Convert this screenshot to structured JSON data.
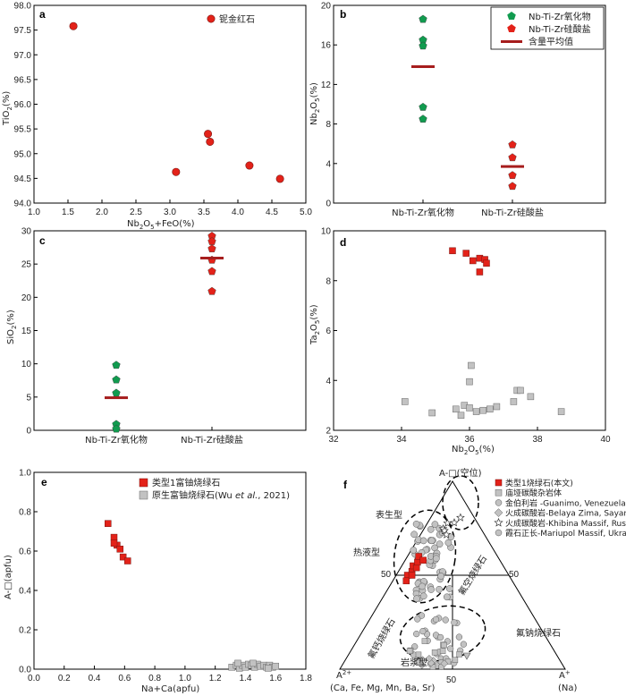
{
  "colors": {
    "red": "#e32219",
    "green": "#119b4f",
    "grey": "#c2c2c2",
    "mean": "#a61d1d"
  },
  "chart_data": [
    {
      "type": "scatter",
      "panel": "a",
      "xlabel": "Nb2O5+FeO(%)",
      "ylabel": "TiO2(%)",
      "xlim": [
        1.0,
        5.0
      ],
      "ylim": [
        94.0,
        98.0
      ],
      "xticks": [
        "1.0",
        "1.5",
        "2.0",
        "2.5",
        "3.0",
        "3.5",
        "4.0",
        "4.5",
        "5.0"
      ],
      "yticks": [
        "94.0",
        "94.5",
        "95.0",
        "95.5",
        "96.0",
        "96.5",
        "97.0",
        "97.5",
        "98.0"
      ],
      "series": [
        {
          "name": "铌金红石",
          "marker": "circle",
          "color": "#e32219",
          "points": [
            [
              1.58,
              97.58
            ],
            [
              3.09,
              94.63
            ],
            [
              3.56,
              95.4
            ],
            [
              3.59,
              95.24
            ],
            [
              4.17,
              94.76
            ],
            [
              4.62,
              94.49
            ]
          ]
        }
      ]
    },
    {
      "type": "scatter",
      "panel": "b",
      "xlabel": "",
      "ylabel": "Nb2O5(%)",
      "ylim": [
        0,
        20
      ],
      "yticks": [
        "0",
        "4",
        "8",
        "12",
        "16",
        "20"
      ],
      "categories": [
        "Nb-Ti-Zr氧化物",
        "Nb-Ti-Zr硅酸盐"
      ],
      "series": [
        {
          "name": "Nb-Ti-Zr氧化物",
          "marker": "pentagon",
          "color": "#119b4f",
          "category": 0,
          "values": [
            18.6,
            16.5,
            15.9,
            9.7,
            8.5
          ]
        },
        {
          "name": "Nb-Ti-Zr硅酸盐",
          "marker": "pentagon",
          "color": "#e32219",
          "category": 1,
          "values": [
            5.9,
            4.6,
            2.8,
            1.7
          ]
        },
        {
          "name": "含量平均值",
          "marker": "bar",
          "color": "#a61d1d",
          "means": [
            13.8,
            3.7
          ]
        }
      ]
    },
    {
      "type": "scatter",
      "panel": "c",
      "xlabel": "",
      "ylabel": "SiO2(%)",
      "ylim": [
        0,
        30
      ],
      "yticks": [
        "0",
        "5",
        "10",
        "15",
        "20",
        "25",
        "30"
      ],
      "categories": [
        "Nb-Ti-Zr氧化物",
        "Nb-Ti-Zr硅酸盐"
      ],
      "series": [
        {
          "name": "Nb-Ti-Zr氧化物",
          "marker": "pentagon",
          "color": "#119b4f",
          "category": 0,
          "values": [
            9.8,
            7.6,
            5.6,
            0.9,
            0.2
          ]
        },
        {
          "name": "Nb-Ti-Zr硅酸盐",
          "marker": "pentagon",
          "color": "#e32219",
          "category": 1,
          "values": [
            29.2,
            28.4,
            27.3,
            25.6,
            23.9,
            20.9
          ]
        },
        {
          "name": "含量平均值",
          "marker": "bar",
          "color": "#a61d1d",
          "means": [
            4.9,
            25.9
          ]
        }
      ]
    },
    {
      "type": "scatter",
      "panel": "d",
      "xlabel": "Nb2O5(%)",
      "ylabel": "Ta2O5(%)",
      "xlim": [
        32,
        40
      ],
      "ylim": [
        2,
        10
      ],
      "xticks": [
        "32",
        "34",
        "36",
        "38",
        "40"
      ],
      "yticks": [
        "2",
        "4",
        "6",
        "8",
        "10"
      ],
      "series": [
        {
          "name": "red",
          "marker": "square",
          "color": "#e32219",
          "points": [
            [
              35.5,
              9.2
            ],
            [
              35.9,
              9.1
            ],
            [
              36.1,
              8.8
            ],
            [
              36.3,
              8.9
            ],
            [
              36.45,
              8.85
            ],
            [
              36.5,
              8.7
            ],
            [
              36.3,
              8.35
            ]
          ]
        },
        {
          "name": "grey",
          "marker": "square",
          "color": "#c2c2c2",
          "points": [
            [
              34.1,
              3.15
            ],
            [
              34.9,
              2.7
            ],
            [
              35.6,
              2.85
            ],
            [
              35.75,
              2.6
            ],
            [
              35.85,
              3.0
            ],
            [
              36.0,
              2.9
            ],
            [
              36.05,
              4.6
            ],
            [
              36.0,
              3.95
            ],
            [
              36.2,
              2.75
            ],
            [
              36.4,
              2.8
            ],
            [
              36.6,
              2.85
            ],
            [
              36.8,
              2.95
            ],
            [
              37.3,
              3.15
            ],
            [
              37.4,
              3.6
            ],
            [
              37.5,
              3.6
            ],
            [
              37.8,
              3.35
            ],
            [
              38.7,
              2.75
            ]
          ]
        }
      ]
    },
    {
      "type": "scatter",
      "panel": "e",
      "xlabel": "Na+Ca(apfu)",
      "ylabel": "A-□(apfu)",
      "xlim": [
        0.0,
        1.8
      ],
      "ylim": [
        0.0,
        1.0
      ],
      "xticks": [
        "0.0",
        "0.2",
        "0.4",
        "0.6",
        "0.8",
        "1.0",
        "1.2",
        "1.4",
        "1.6",
        "1.8"
      ],
      "yticks": [
        "0.0",
        "0.2",
        "0.4",
        "0.6",
        "0.8",
        "1.0"
      ],
      "series": [
        {
          "name": "类型1富铀烧绿石",
          "marker": "square",
          "color": "#e32219",
          "points": [
            [
              0.49,
              0.74
            ],
            [
              0.53,
              0.67
            ],
            [
              0.55,
              0.63
            ],
            [
              0.53,
              0.64
            ],
            [
              0.57,
              0.61
            ],
            [
              0.59,
              0.57
            ],
            [
              0.62,
              0.55
            ]
          ]
        },
        {
          "name": "原生富铀烧绿石(Wu et al., 2021)",
          "marker": "square",
          "color": "#c2c2c2",
          "points": [
            [
              1.31,
              0.01
            ],
            [
              1.34,
              0.02
            ],
            [
              1.36,
              0.005
            ],
            [
              1.38,
              0.02
            ],
            [
              1.4,
              0.01
            ],
            [
              1.42,
              0.025
            ],
            [
              1.44,
              0.02
            ],
            [
              1.46,
              0.01
            ],
            [
              1.48,
              0.025
            ],
            [
              1.5,
              0.015
            ],
            [
              1.52,
              0.02
            ],
            [
              1.54,
              0.01
            ],
            [
              1.56,
              0.02
            ],
            [
              1.58,
              0.01
            ],
            [
              1.35,
              0.03
            ],
            [
              1.45,
              0.03
            ],
            [
              1.55,
              0.005
            ],
            [
              1.6,
              0.015
            ]
          ]
        }
      ]
    },
    {
      "type": "ternary",
      "panel": "f",
      "legend": [
        {
          "label": "类型1烧绿石(本文)",
          "marker": "square",
          "color": "#e32219"
        },
        {
          "label": "庙垭碳酸杂岩体",
          "marker": "square",
          "color": "#c2c2c2"
        },
        {
          "label": "金伯利岩 -Guanimo, Venezuela",
          "marker": "circle",
          "color": "#c2c2c2"
        },
        {
          "label": "火成碳酸岩-Belaya Zima, Sayan",
          "marker": "diamond",
          "color": "#c2c2c2"
        },
        {
          "label": "火成碳酸岩-Khibina Massif, Russia",
          "marker": "star",
          "color": "#ffffff"
        },
        {
          "label": "霞石正长-Mariupol Massif, Ukraine",
          "marker": "circle",
          "color": "#c2c2c2"
        }
      ],
      "field_labels": [
        "表生型",
        "热液型",
        "岩浆型",
        "氟空烧绿石",
        "氟钙烧绿石",
        "氟钠烧绿石"
      ],
      "tick_label": "50",
      "red_points_A": [
        [
          0.05,
          0.5
        ],
        [
          0.06,
          0.52
        ],
        [
          0.05,
          0.55
        ],
        [
          0.07,
          0.54
        ],
        [
          0.06,
          0.57
        ],
        [
          0.05,
          0.6
        ],
        [
          0.08,
          0.58
        ],
        [
          0.06,
          0.47
        ],
        [
          0.07,
          0.5
        ]
      ]
    }
  ],
  "panels": {
    "a": {
      "letter": "a",
      "ylabel_main": "TiO",
      "ylabel_sub": "2",
      "ylabel_tail": "(%)",
      "xlabel_a": "Nb",
      "xlabel_sub1": "2",
      "xlabel_b": "O",
      "xlabel_sub2": "5",
      "xlabel_tail": "+FeO(%)",
      "legend": "铌金红石"
    },
    "b": {
      "letter": "b",
      "ylabel_main": "Nb",
      "ylabel_sub1": "2",
      "ylabel_mid": "O",
      "ylabel_sub2": "5",
      "ylabel_tail": "(%)",
      "legend_green": "Nb-Ti-Zr氧化物",
      "legend_red": "Nb-Ti-Zr硅酸盐",
      "legend_mean": "含量平均值"
    },
    "c": {
      "letter": "c",
      "ylabel_main": "SiO",
      "ylabel_sub": "2",
      "ylabel_tail": "(%)"
    },
    "d": {
      "letter": "d",
      "ylabel_main": "Ta",
      "ylabel_sub1": "2",
      "ylabel_mid": "O",
      "ylabel_sub2": "5",
      "ylabel_tail": "(%)",
      "xlabel_a": "Nb",
      "xlabel_sub1": "2",
      "xlabel_b": "O",
      "xlabel_sub2": "5",
      "xlabel_tail": "(%)"
    },
    "e": {
      "letter": "e",
      "ylabel": "A-□(apfu)",
      "xlabel": "Na+Ca(apfu)",
      "legend_red": "类型1富铀烧绿石",
      "legend_grey_a": "原生富铀烧绿石(Wu ",
      "legend_grey_it": "et al.",
      "legend_grey_b": ", 2021)"
    },
    "f": {
      "letter": "f",
      "apex_top": "A-□(空位)",
      "apex_left_a": "A",
      "apex_left_sup": "2+",
      "apex_left_b": "(Ca, Fe, Mg, Mn, Ba, Sr)",
      "apex_right_a": "A",
      "apex_right_sup": "+",
      "apex_right_b": "(Na)",
      "tick50": "50"
    }
  }
}
